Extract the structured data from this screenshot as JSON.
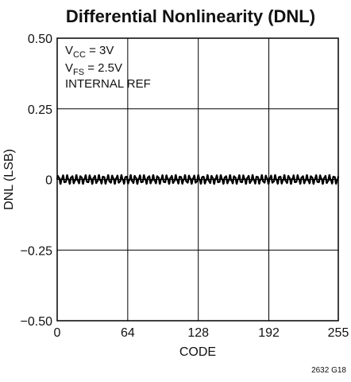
{
  "chart_data": {
    "type": "line",
    "title": "Differential Nonlinearity (DNL)",
    "xlabel": "CODE",
    "ylabel": "DNL (LSB)",
    "xlim": [
      0,
      255
    ],
    "ylim": [
      -0.5,
      0.5
    ],
    "x_ticks": [
      0,
      64,
      128,
      192,
      255
    ],
    "x_tick_labels": [
      "0",
      "64",
      "128",
      "192",
      "255"
    ],
    "y_ticks": [
      0.5,
      0.25,
      0,
      -0.25,
      -0.5
    ],
    "y_tick_labels": [
      "0.50",
      "0.25",
      "0",
      "−0.25",
      "−0.50"
    ],
    "grid": true,
    "annotations": {
      "line1_main": "V",
      "line1_sub": "CC",
      "line1_rest": " = 3V",
      "line2_main": "V",
      "line2_sub": "FS",
      "line2_rest": " = 2.5V",
      "line3": "INTERNAL REF"
    },
    "figure_id": "2632 G18",
    "series": [
      {
        "x_start": 0,
        "x_end": 255,
        "mean": 0.0,
        "amplitude": 0.012,
        "period_codes": 4.1,
        "color": "#000000"
      }
    ]
  }
}
